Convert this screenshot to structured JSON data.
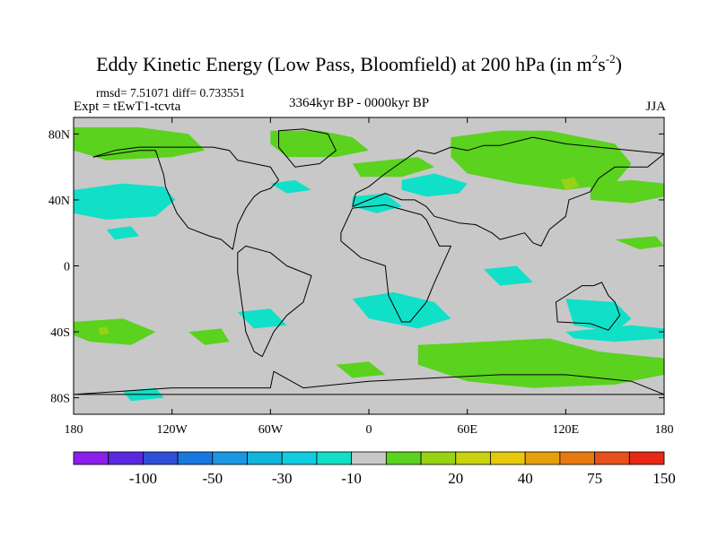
{
  "chart_data": {
    "type": "heatmap",
    "title": "Eddy Kinetic Energy (Low Pass, Bloomfield) at 200 hPa (in m",
    "title_unit_sup1": "2",
    "title_unit_mid": "s",
    "title_unit_sup2": "-2",
    "title_close": ")",
    "stats_text": "rmsd= 7.51071 diff= 0.733551",
    "experiment_text": "Expt = tEwT1-tcvta",
    "period_text": "3364kyr BP - 0000kyr BP",
    "season_text": "JJA",
    "x_range": [
      -180,
      180
    ],
    "y_range": [
      -90,
      90
    ],
    "x_ticks": [
      {
        "value": -180,
        "label": "180"
      },
      {
        "value": -120,
        "label": "120W"
      },
      {
        "value": -60,
        "label": "60W"
      },
      {
        "value": 0,
        "label": "0"
      },
      {
        "value": 60,
        "label": "60E"
      },
      {
        "value": 120,
        "label": "120E"
      },
      {
        "value": 180,
        "label": "180"
      }
    ],
    "y_ticks": [
      {
        "value": 80,
        "label": "80N"
      },
      {
        "value": 40,
        "label": "40N"
      },
      {
        "value": 0,
        "label": "0"
      },
      {
        "value": -40,
        "label": "40S"
      },
      {
        "value": -80,
        "label": "80S"
      }
    ],
    "colorbar": {
      "colors": [
        "#8b1ee8",
        "#5a28e0",
        "#2d50d6",
        "#1878df",
        "#1b96e2",
        "#10b4dc",
        "#10cce0",
        "#10e0c8",
        "#c8c8c8",
        "#5ad21e",
        "#98d214",
        "#c8d20e",
        "#e6c80c",
        "#e6a00c",
        "#e67a10",
        "#e6501a",
        "#e62814"
      ],
      "labels": [
        "-100",
        "-50",
        "-30",
        "-10",
        "20",
        "40",
        "75",
        "150"
      ],
      "label_bounds": [
        2,
        4,
        6,
        8,
        11,
        13,
        15,
        17
      ]
    },
    "anomaly_regions": [
      {
        "name": "arctic-green-west",
        "color": "#5ad21e",
        "lon": [
          -180,
          -140,
          -110,
          -100,
          -120,
          -160,
          -180
        ],
        "lat": [
          84,
          84,
          80,
          70,
          66,
          64,
          70
        ]
      },
      {
        "name": "north-atlantic-green",
        "color": "#5ad21e",
        "lon": [
          -60,
          -30,
          -10,
          0,
          -20,
          -50,
          -60
        ],
        "lat": [
          82,
          82,
          78,
          70,
          66,
          66,
          74
        ]
      },
      {
        "name": "north-pacific-cyan",
        "color": "#10e0c8",
        "lon": [
          -180,
          -150,
          -125,
          -118,
          -130,
          -160,
          -180
        ],
        "lat": [
          46,
          50,
          48,
          40,
          30,
          28,
          32
        ]
      },
      {
        "name": "pacific-cyan-small",
        "color": "#10e0c8",
        "lon": [
          -160,
          -145,
          -140,
          -155
        ],
        "lat": [
          22,
          24,
          18,
          16
        ]
      },
      {
        "name": "atlantic-cyan",
        "color": "#10e0c8",
        "lon": [
          -60,
          -45,
          -35,
          -50
        ],
        "lat": [
          50,
          52,
          46,
          44
        ]
      },
      {
        "name": "europe-green",
        "color": "#5ad21e",
        "lon": [
          -10,
          10,
          30,
          40,
          20,
          -5
        ],
        "lat": [
          62,
          64,
          66,
          60,
          54,
          54
        ]
      },
      {
        "name": "med-cyan",
        "color": "#10e0c8",
        "lon": [
          -10,
          10,
          20,
          5,
          -10
        ],
        "lat": [
          42,
          44,
          36,
          32,
          36
        ]
      },
      {
        "name": "siberia-green",
        "color": "#5ad21e",
        "lon": [
          50,
          80,
          110,
          130,
          150,
          160,
          150,
          120,
          90,
          60,
          50
        ],
        "lat": [
          78,
          82,
          82,
          78,
          74,
          62,
          50,
          46,
          50,
          56,
          66
        ]
      },
      {
        "name": "siberia-yellow",
        "color": "#98d214",
        "lon": [
          117,
          125,
          128,
          120
        ],
        "lat": [
          52,
          54,
          48,
          46
        ]
      },
      {
        "name": "east-asia-green",
        "color": "#5ad21e",
        "lon": [
          135,
          160,
          180,
          180,
          160,
          135
        ],
        "lat": [
          50,
          52,
          50,
          42,
          38,
          40
        ]
      },
      {
        "name": "central-asia-cyan",
        "color": "#10e0c8",
        "lon": [
          20,
          40,
          60,
          55,
          35,
          20
        ],
        "lat": [
          52,
          56,
          50,
          44,
          42,
          46
        ]
      },
      {
        "name": "east-pacific-green",
        "color": "#5ad21e",
        "lon": [
          150,
          175,
          180,
          165
        ],
        "lat": [
          16,
          18,
          12,
          10
        ]
      },
      {
        "name": "south-america-cyan",
        "color": "#10e0c8",
        "lon": [
          -80,
          -60,
          -50,
          -70
        ],
        "lat": [
          -28,
          -26,
          -36,
          -38
        ]
      },
      {
        "name": "south-atlantic-cyan",
        "color": "#10e0c8",
        "lon": [
          -10,
          15,
          40,
          50,
          30,
          0
        ],
        "lat": [
          -20,
          -16,
          -22,
          -32,
          -38,
          -32
        ]
      },
      {
        "name": "indian-ocean-cyan",
        "color": "#10e0c8",
        "lon": [
          70,
          90,
          100,
          80
        ],
        "lat": [
          -2,
          0,
          -10,
          -12
        ]
      },
      {
        "name": "australia-cyan",
        "color": "#10e0c8",
        "lon": [
          120,
          150,
          160,
          150,
          125
        ],
        "lat": [
          -20,
          -22,
          -32,
          -40,
          -36
        ]
      },
      {
        "name": "south-pacific-cyan",
        "color": "#10e0c8",
        "lon": [
          120,
          160,
          180,
          180,
          150,
          125
        ],
        "lat": [
          -40,
          -36,
          -38,
          -44,
          -46,
          -44
        ]
      },
      {
        "name": "southern-ocean-green",
        "color": "#5ad21e",
        "lon": [
          30,
          70,
          110,
          140,
          180,
          180,
          150,
          100,
          60,
          30
        ],
        "lat": [
          -48,
          -46,
          -44,
          -52,
          -56,
          -66,
          -72,
          -74,
          -70,
          -60
        ]
      },
      {
        "name": "sw-pacific-green",
        "color": "#5ad21e",
        "lon": [
          -180,
          -150,
          -130,
          -145,
          -170,
          -180
        ],
        "lat": [
          -34,
          -32,
          -40,
          -48,
          -46,
          -42
        ]
      },
      {
        "name": "sw-pacific-yellow",
        "color": "#98d214",
        "lon": [
          -165,
          -160,
          -158,
          -164
        ],
        "lat": [
          -38,
          -37,
          -41,
          -42
        ]
      },
      {
        "name": "south-pacific-green2",
        "color": "#5ad21e",
        "lon": [
          -110,
          -90,
          -85,
          -100
        ],
        "lat": [
          -40,
          -38,
          -46,
          -48
        ]
      },
      {
        "name": "antarctic-cyan",
        "color": "#10e0c8",
        "lon": [
          -150,
          -130,
          -125,
          -145
        ],
        "lat": [
          -76,
          -74,
          -80,
          -82
        ]
      },
      {
        "name": "south-atlantic-green",
        "color": "#5ad21e",
        "lon": [
          -20,
          0,
          10,
          -10
        ],
        "lat": [
          -60,
          -58,
          -66,
          -68
        ]
      }
    ],
    "continents": [
      {
        "name": "north-america",
        "lon": [
          -168,
          -140,
          -130,
          -125,
          -124,
          -117,
          -110,
          -97,
          -90,
          -83,
          -80,
          -75,
          -70,
          -66,
          -60,
          -55,
          -60,
          -70,
          -80,
          -85,
          -95,
          -110,
          -125,
          -140,
          -155,
          -168
        ],
        "lat": [
          66,
          70,
          70,
          55,
          48,
          32,
          23,
          18,
          16,
          10,
          25,
          35,
          42,
          45,
          47,
          52,
          60,
          62,
          64,
          70,
          72,
          72,
          72,
          72,
          70,
          66
        ]
      },
      {
        "name": "greenland",
        "lon": [
          -55,
          -40,
          -25,
          -20,
          -30,
          -45,
          -55
        ],
        "lat": [
          82,
          83,
          80,
          70,
          62,
          60,
          72
        ]
      },
      {
        "name": "south-america",
        "lon": [
          -80,
          -75,
          -60,
          -50,
          -35,
          -40,
          -50,
          -58,
          -65,
          -70,
          -75,
          -80
        ],
        "lat": [
          8,
          12,
          8,
          0,
          -6,
          -22,
          -30,
          -40,
          -55,
          -52,
          -40,
          -4
        ]
      },
      {
        "name": "eurasia",
        "lon": [
          -10,
          -8,
          0,
          5,
          10,
          30,
          40,
          50,
          60,
          70,
          80,
          100,
          120,
          140,
          160,
          180,
          170,
          150,
          140,
          135,
          122,
          120,
          110,
          105,
          100,
          95,
          80,
          75,
          65,
          55,
          40,
          35,
          28,
          20,
          10,
          0,
          -10
        ],
        "lat": [
          36,
          44,
          48,
          52,
          56,
          70,
          68,
          72,
          70,
          73,
          73,
          78,
          74,
          72,
          70,
          68,
          60,
          60,
          53,
          45,
          40,
          30,
          22,
          12,
          14,
          20,
          16,
          20,
          25,
          26,
          30,
          36,
          40,
          40,
          44,
          40,
          36
        ]
      },
      {
        "name": "africa",
        "lon": [
          -17,
          -10,
          10,
          32,
          35,
          43,
          50,
          40,
          35,
          25,
          20,
          12,
          10,
          -5,
          -17
        ],
        "lat": [
          20,
          35,
          37,
          31,
          28,
          12,
          12,
          -10,
          -22,
          -34,
          -34,
          -18,
          0,
          5,
          15
        ]
      },
      {
        "name": "australia",
        "lon": [
          114,
          130,
          137,
          142,
          146,
          150,
          153,
          146,
          135,
          115,
          114
        ],
        "lat": [
          -22,
          -12,
          -12,
          -10,
          -18,
          -22,
          -30,
          -39,
          -35,
          -34,
          -22
        ]
      },
      {
        "name": "antarctica",
        "lon": [
          -180,
          -120,
          -60,
          -58,
          -40,
          0,
          40,
          80,
          120,
          160,
          180
        ],
        "lat": [
          -78,
          -74,
          -74,
          -64,
          -74,
          -70,
          -68,
          -66,
          -66,
          -70,
          -78
        ]
      }
    ]
  }
}
